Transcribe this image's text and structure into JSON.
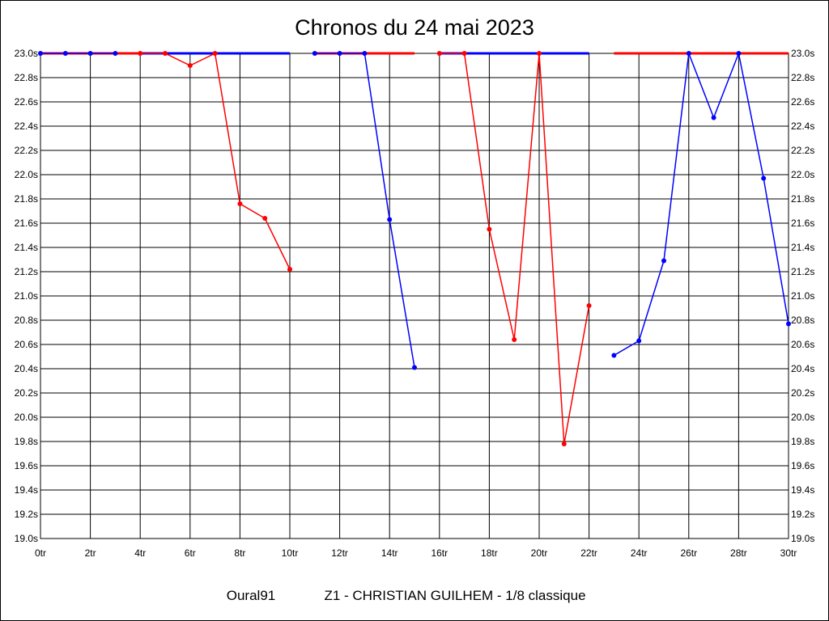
{
  "chart_data": {
    "type": "line",
    "title": "Chronos du 24 mai 2023",
    "footer_left": "Oural91",
    "footer_right": "Z1 - CHRISTIAN GUILHEM - 1/8 classique",
    "xlabel": "",
    "ylabel": "",
    "xlim": [
      0,
      30
    ],
    "ylim": [
      19.0,
      23.0
    ],
    "grid": true,
    "x_ticks": [
      0,
      2,
      4,
      6,
      8,
      10,
      12,
      14,
      16,
      18,
      20,
      22,
      24,
      26,
      28,
      30
    ],
    "x_tick_labels": [
      "0tr",
      "2tr",
      "4tr",
      "6tr",
      "8tr",
      "10tr",
      "12tr",
      "14tr",
      "16tr",
      "18tr",
      "20tr",
      "22tr",
      "24tr",
      "26tr",
      "28tr",
      "30tr"
    ],
    "y_ticks": [
      19.0,
      19.2,
      19.4,
      19.6,
      19.8,
      20.0,
      20.2,
      20.4,
      20.6,
      20.8,
      21.0,
      21.2,
      21.4,
      21.6,
      21.8,
      22.0,
      22.2,
      22.4,
      22.6,
      22.8,
      23.0
    ],
    "y_tick_labels": [
      "19.0s",
      "19.2s",
      "19.4s",
      "19.6s",
      "19.8s",
      "20.0s",
      "20.2s",
      "20.4s",
      "20.6s",
      "20.8s",
      "21.0s",
      "21.2s",
      "21.4s",
      "21.6s",
      "21.8s",
      "22.0s",
      "22.2s",
      "22.4s",
      "22.6s",
      "22.8s",
      "23.0s"
    ],
    "series": [
      {
        "color": "#0000ff",
        "x": [
          0,
          1,
          2,
          3
        ],
        "y": [
          23.0,
          23.0,
          23.0,
          23.0
        ],
        "start_level": 23.0,
        "start_from": 0
      },
      {
        "color": "#ff0000",
        "x": [
          4,
          5,
          6,
          7,
          8,
          9,
          10
        ],
        "y": [
          23.0,
          23.0,
          22.9,
          23.0,
          21.76,
          21.64,
          21.22
        ],
        "start_level": 23.0,
        "start_from": 3
      },
      {
        "color": "#0000ff",
        "x": [
          11,
          12,
          13,
          14,
          15
        ],
        "y": [
          23.0,
          23.0,
          23.0,
          21.63,
          20.41
        ],
        "start_level": 23.0,
        "start_from": 10
      },
      {
        "color": "#ff0000",
        "x": [
          16,
          17,
          18,
          19,
          20,
          21,
          22
        ],
        "y": [
          23.0,
          23.0,
          21.55,
          20.64,
          23.0,
          19.78,
          20.92
        ],
        "start_level": 23.0,
        "start_from": 15
      },
      {
        "color": "#0000ff",
        "x": [
          23,
          24,
          25,
          26,
          27,
          28,
          29,
          30
        ],
        "y": [
          20.51,
          20.63,
          21.29,
          23.0,
          22.47,
          23.0,
          21.97,
          20.77
        ],
        "start_level": 23.0,
        "start_from": 22
      }
    ],
    "lap_time_level_lines": [
      {
        "color": "#ff0000",
        "x1": 0,
        "x2": 4,
        "y": 23.0
      },
      {
        "color": "#0000ff",
        "x1": 4,
        "x2": 10,
        "y": 23.0
      },
      {
        "color": "#ff0000",
        "x1": 11,
        "x2": 15,
        "y": 23.0
      },
      {
        "color": "#0000ff",
        "x1": 16,
        "x2": 22,
        "y": 23.0
      },
      {
        "color": "#ff0000",
        "x1": 23,
        "x2": 30,
        "y": 23.0
      }
    ]
  }
}
